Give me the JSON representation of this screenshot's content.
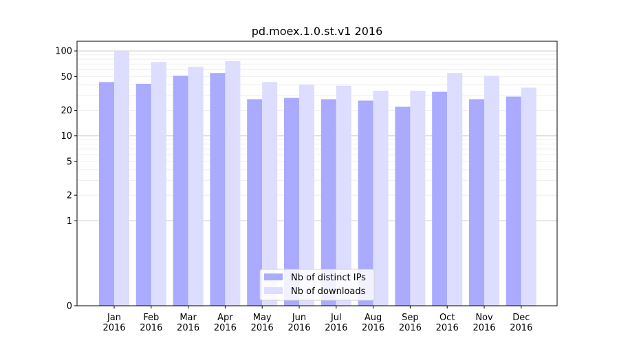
{
  "chart_data": {
    "type": "bar",
    "title": "pd.moex.1.0.st.v1 2016",
    "xlabel": "",
    "ylabel": "",
    "yscale": "symlog",
    "ylim": [
      0,
      130
    ],
    "grid": "horizontal, major and minor",
    "legend_position": "lower-center",
    "categories": [
      [
        "Jan",
        "2016"
      ],
      [
        "Feb",
        "2016"
      ],
      [
        "Mar",
        "2016"
      ],
      [
        "Apr",
        "2016"
      ],
      [
        "May",
        "2016"
      ],
      [
        "Jun",
        "2016"
      ],
      [
        "Jul",
        "2016"
      ],
      [
        "Aug",
        "2016"
      ],
      [
        "Sep",
        "2016"
      ],
      [
        "Oct",
        "2016"
      ],
      [
        "Nov",
        "2016"
      ],
      [
        "Dec",
        "2016"
      ]
    ],
    "y_ticks": [
      {
        "value": 0,
        "label": "0"
      },
      {
        "value": 1,
        "label": "1"
      },
      {
        "value": 2,
        "label": "2"
      },
      {
        "value": 5,
        "label": "5"
      },
      {
        "value": 10,
        "label": "10"
      },
      {
        "value": 20,
        "label": "20"
      },
      {
        "value": 50,
        "label": "50"
      },
      {
        "value": 100,
        "label": "100"
      }
    ],
    "series": [
      {
        "name": "Nb of distinct IPs",
        "color": "#aaaaff",
        "values": [
          43,
          41,
          51,
          55,
          27,
          28,
          27,
          26,
          22,
          33,
          27,
          29
        ]
      },
      {
        "name": "Nb of downloads",
        "color": "#ddddff",
        "values": [
          98,
          74,
          65,
          76,
          43,
          40,
          39,
          34,
          34,
          55,
          51,
          37
        ]
      }
    ]
  }
}
